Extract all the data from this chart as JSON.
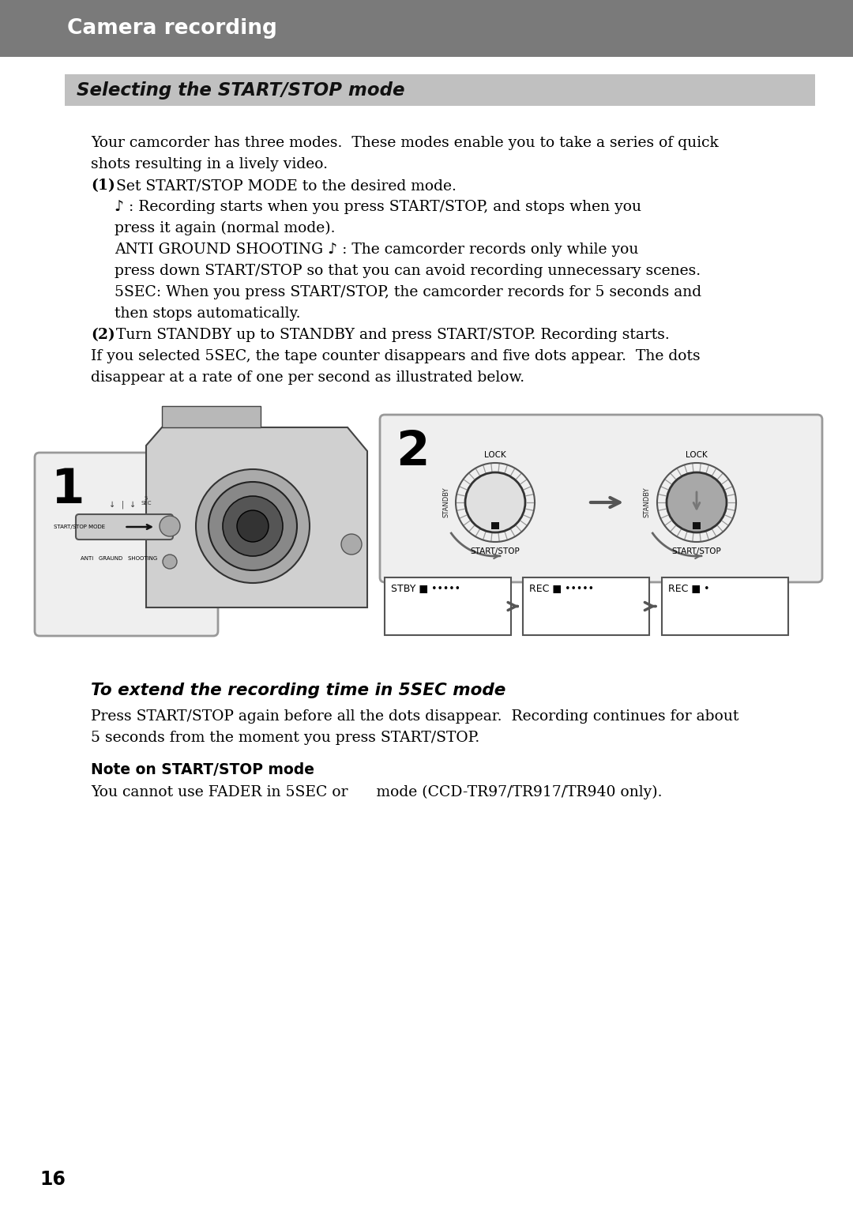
{
  "bg_color": "#ffffff",
  "header_bg": "#7a7a7a",
  "header_text": "Camera recording",
  "header_text_color": "#ffffff",
  "section_bg": "#c0c0c0",
  "section_text": "Selecting the START/STOP mode",
  "page_number": "16",
  "extend_title": "To extend the recording time in 5SEC mode",
  "extend_line1": "Press START/STOP again before all the dots disappear.  Recording continues for about",
  "extend_line2": "5 seconds from the moment you press START/STOP.",
  "note_title": "Note on START/STOP mode",
  "note_body": "You cannot use FADER in 5SEC or      mode (CCD-TR97/TR917/TR940 only)."
}
